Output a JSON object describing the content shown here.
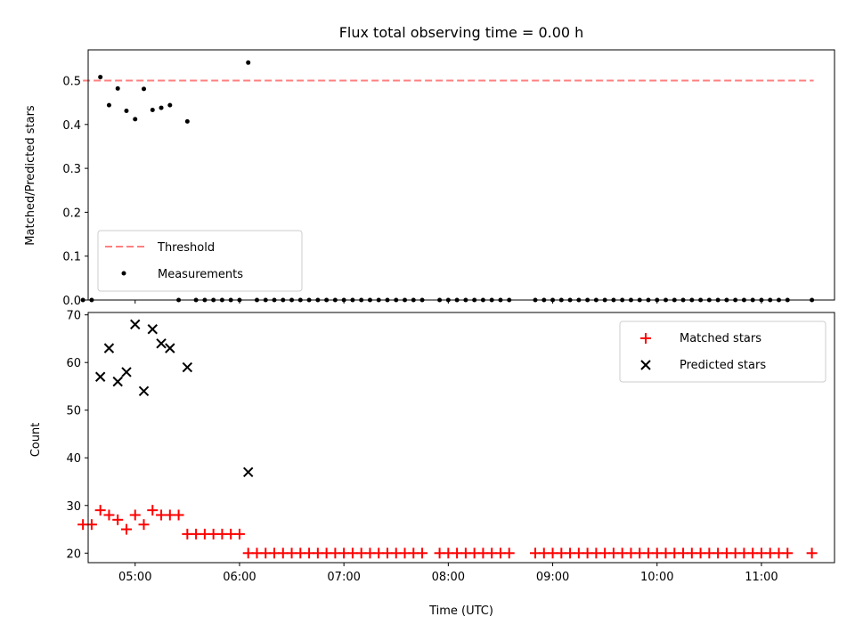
{
  "chart_data": [
    {
      "type": "scatter",
      "title": "Flux total observing time = 0.00 h",
      "xlabel": "",
      "ylabel": "Matched/Predicted stars",
      "xlim": [
        "04:33",
        "11:42"
      ],
      "ylim": [
        0.0,
        0.57
      ],
      "yticks": [
        "0.0",
        "0.1",
        "0.2",
        "0.3",
        "0.4",
        "0.5"
      ],
      "xticks": [
        "05:00",
        "06:00",
        "07:00",
        "08:00",
        "09:00",
        "10:00",
        "11:00"
      ],
      "grid": false,
      "legend_position": "lower-left",
      "threshold": {
        "name": "Threshold",
        "color": "#ff7f7f",
        "style": "dashed",
        "value": 0.5,
        "x_range": [
          "04:30",
          "11:30"
        ]
      },
      "series": [
        {
          "name": "Measurements",
          "color": "#000000",
          "marker": "dot",
          "x": [
            "04:40",
            "04:45",
            "04:50",
            "04:55",
            "05:00",
            "05:05",
            "05:10",
            "05:15",
            "05:20",
            "05:30",
            "06:05",
            "04:30",
            "04:35",
            "05:25",
            "05:35",
            "05:40",
            "05:45",
            "05:50",
            "05:55",
            "06:00",
            "06:10",
            "06:15",
            "06:20",
            "06:25",
            "06:30",
            "06:35",
            "06:40",
            "06:45",
            "06:50",
            "06:55",
            "07:00",
            "07:05",
            "07:10",
            "07:15",
            "07:20",
            "07:25",
            "07:30",
            "07:35",
            "07:40",
            "07:45",
            "07:55",
            "08:00",
            "08:05",
            "08:10",
            "08:15",
            "08:20",
            "08:25",
            "08:30",
            "08:35",
            "08:50",
            "08:55",
            "09:00",
            "09:05",
            "09:10",
            "09:15",
            "09:20",
            "09:25",
            "09:30",
            "09:35",
            "09:40",
            "09:45",
            "09:50",
            "09:55",
            "10:00",
            "10:05",
            "10:10",
            "10:15",
            "10:20",
            "10:25",
            "10:30",
            "10:35",
            "10:40",
            "10:45",
            "10:50",
            "10:55",
            "11:00",
            "11:05",
            "11:10",
            "11:15",
            "11:29"
          ],
          "y": [
            0.508,
            0.444,
            0.482,
            0.431,
            0.412,
            0.481,
            0.433,
            0.438,
            0.444,
            0.407,
            0.541,
            0,
            0,
            0,
            0,
            0,
            0,
            0,
            0,
            0,
            0,
            0,
            0,
            0,
            0,
            0,
            0,
            0,
            0,
            0,
            0,
            0,
            0,
            0,
            0,
            0,
            0,
            0,
            0,
            0,
            0,
            0,
            0,
            0,
            0,
            0,
            0,
            0,
            0,
            0,
            0,
            0,
            0,
            0,
            0,
            0,
            0,
            0,
            0,
            0,
            0,
            0,
            0,
            0,
            0,
            0,
            0,
            0,
            0,
            0,
            0,
            0,
            0,
            0,
            0,
            0,
            0,
            0,
            0,
            0
          ]
        }
      ]
    },
    {
      "type": "scatter",
      "title": "",
      "xlabel": "Time (UTC)",
      "ylabel": "Count",
      "xlim": [
        "04:33",
        "11:42"
      ],
      "ylim": [
        18,
        70.5
      ],
      "yticks": [
        "20",
        "30",
        "40",
        "50",
        "60",
        "70"
      ],
      "xticks": [
        "05:00",
        "06:00",
        "07:00",
        "08:00",
        "09:00",
        "10:00",
        "11:00"
      ],
      "grid": false,
      "legend_position": "upper-right",
      "series": [
        {
          "name": "Matched stars",
          "color": "#ff0000",
          "marker": "plus",
          "x": [
            "04:30",
            "04:35",
            "04:40",
            "04:45",
            "04:50",
            "04:55",
            "05:00",
            "05:05",
            "05:10",
            "05:15",
            "05:20",
            "05:25",
            "05:30",
            "05:35",
            "05:40",
            "05:45",
            "05:50",
            "05:55",
            "06:00",
            "06:05",
            "06:10",
            "06:15",
            "06:20",
            "06:25",
            "06:30",
            "06:35",
            "06:40",
            "06:45",
            "06:50",
            "06:55",
            "07:00",
            "07:05",
            "07:10",
            "07:15",
            "07:20",
            "07:25",
            "07:30",
            "07:35",
            "07:40",
            "07:45",
            "07:55",
            "08:00",
            "08:05",
            "08:10",
            "08:15",
            "08:20",
            "08:25",
            "08:30",
            "08:35",
            "08:50",
            "08:55",
            "09:00",
            "09:05",
            "09:10",
            "09:15",
            "09:20",
            "09:25",
            "09:30",
            "09:35",
            "09:40",
            "09:45",
            "09:50",
            "09:55",
            "10:00",
            "10:05",
            "10:10",
            "10:15",
            "10:20",
            "10:25",
            "10:30",
            "10:35",
            "10:40",
            "10:45",
            "10:50",
            "10:55",
            "11:00",
            "11:05",
            "11:10",
            "11:15",
            "11:29"
          ],
          "y": [
            26,
            26,
            29,
            28,
            27,
            25,
            28,
            26,
            29,
            28,
            28,
            28,
            24,
            24,
            24,
            24,
            24,
            24,
            24,
            20,
            20,
            20,
            20,
            20,
            20,
            20,
            20,
            20,
            20,
            20,
            20,
            20,
            20,
            20,
            20,
            20,
            20,
            20,
            20,
            20,
            20,
            20,
            20,
            20,
            20,
            20,
            20,
            20,
            20,
            20,
            20,
            20,
            20,
            20,
            20,
            20,
            20,
            20,
            20,
            20,
            20,
            20,
            20,
            20,
            20,
            20,
            20,
            20,
            20,
            20,
            20,
            20,
            20,
            20,
            20,
            20,
            20,
            20,
            20,
            20
          ]
        },
        {
          "name": "Predicted stars",
          "color": "#000000",
          "marker": "x",
          "x": [
            "04:40",
            "04:45",
            "04:50",
            "04:55",
            "05:00",
            "05:05",
            "05:10",
            "05:15",
            "05:20",
            "05:30",
            "06:05"
          ],
          "y": [
            57,
            63,
            56,
            58,
            68,
            54,
            67,
            64,
            63,
            59,
            37
          ]
        }
      ]
    }
  ]
}
